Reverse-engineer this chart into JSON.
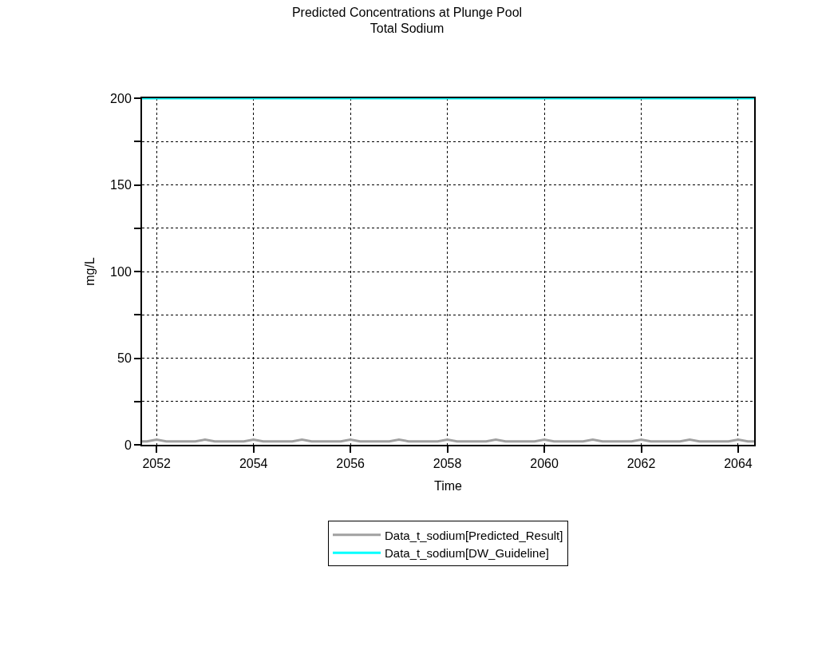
{
  "chart_data": {
    "type": "line",
    "title": "Predicted Concentrations at Plunge Pool",
    "subtitle": "Total Sodium",
    "xlabel": "Time",
    "ylabel": "mg/L",
    "xlim": [
      2051.7,
      2064.33
    ],
    "xticks": [
      2052,
      2054,
      2056,
      2058,
      2060,
      2062,
      2064
    ],
    "ylim": [
      0,
      200
    ],
    "yticks": [
      0,
      {
        "value": 25,
        "label": null
      },
      50,
      {
        "value": 75,
        "label": null
      },
      100,
      {
        "value": 125,
        "label": null
      },
      150,
      {
        "value": 175,
        "label": null
      },
      200
    ],
    "grid": true,
    "legend": "bottom",
    "marker": "none",
    "line_style": "solid",
    "series": [
      {
        "name": "Data_t_sodium[Predicted_Result]",
        "color": "#a0a0a0",
        "x": [
          2051.7,
          2051.8,
          2052,
          2052.2,
          2052.8,
          2053,
          2053.2,
          2053.8,
          2054,
          2054.2,
          2054.8,
          2055,
          2055.2,
          2055.8,
          2056,
          2056.2,
          2056.8,
          2057,
          2057.2,
          2057.8,
          2058,
          2058.2,
          2058.8,
          2059,
          2059.2,
          2059.8,
          2060,
          2060.2,
          2060.8,
          2061,
          2061.2,
          2061.8,
          2062,
          2062.2,
          2062.8,
          2063,
          2063.2,
          2063.8,
          2064,
          2064.2,
          2064.33
        ],
        "values": [
          2,
          2,
          3,
          2,
          2,
          3,
          2,
          2,
          3,
          2,
          2,
          3,
          2,
          2,
          3,
          2,
          2,
          3,
          2,
          2,
          3,
          2,
          2,
          3,
          2,
          2,
          3,
          2,
          2,
          3,
          2,
          2,
          3,
          2,
          2,
          3,
          2,
          2,
          3,
          2,
          2
        ]
      },
      {
        "name": "Data_t_sodium[DW_Guideline]",
        "color": "#00ffff",
        "x": [
          2051.7,
          2064.33
        ],
        "values": [
          200,
          200
        ]
      }
    ]
  }
}
